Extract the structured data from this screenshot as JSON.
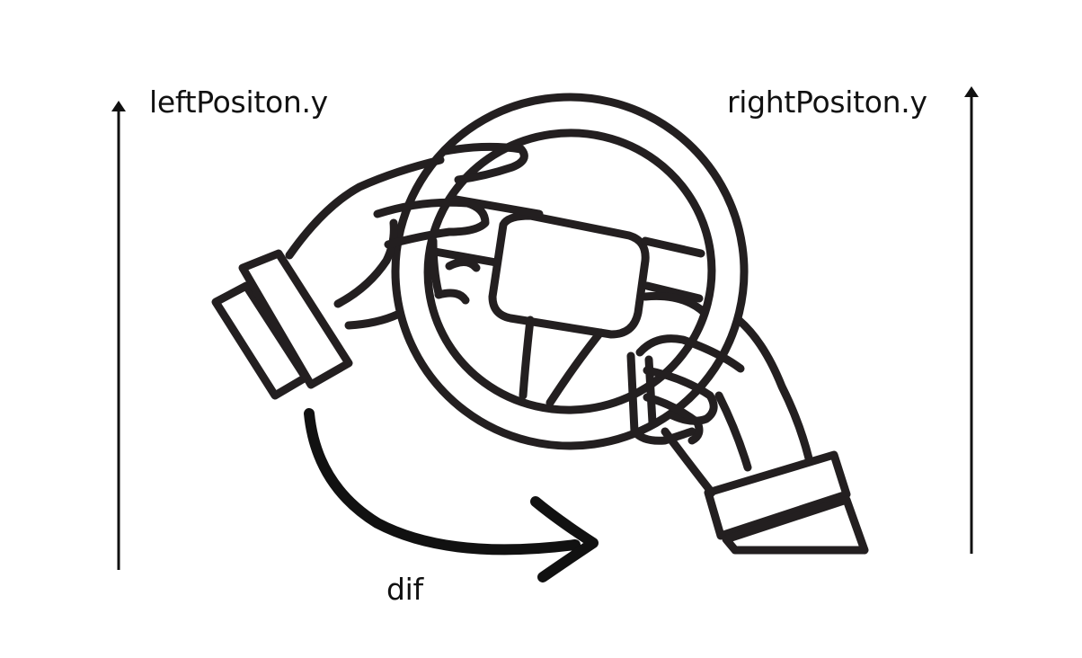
{
  "labels": {
    "left_position": "leftPositon.y",
    "right_position": "rightPositon.y",
    "difference": "dif"
  },
  "colors": {
    "stroke": "#231f20",
    "arrow": "#111111",
    "background": "#ffffff"
  },
  "icons": {
    "steering_wheel": "steering-wheel-icon",
    "left_hand": "left-hand-icon",
    "right_hand": "right-hand-icon"
  }
}
